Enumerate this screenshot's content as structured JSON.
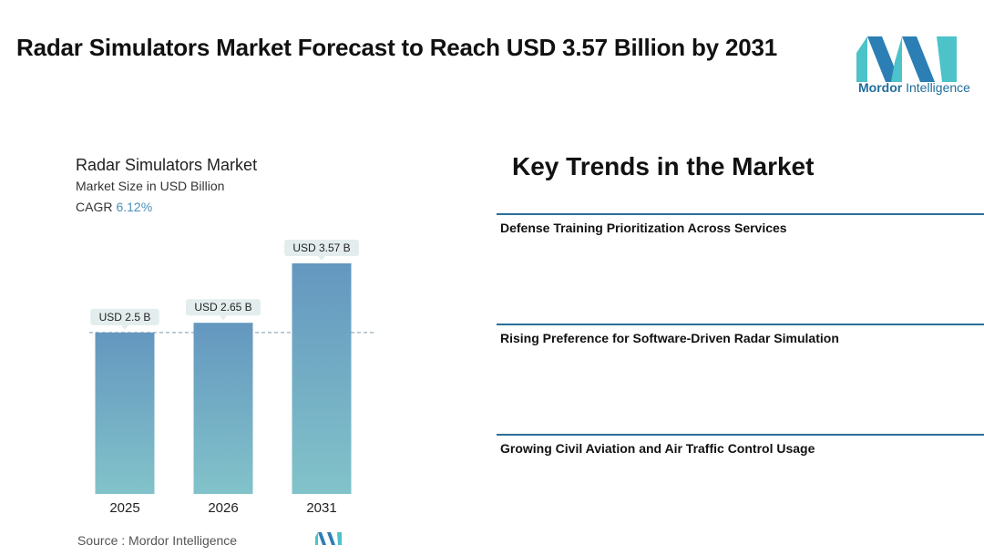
{
  "header": {
    "title": "Radar Simulators Market Forecast to Reach USD 3.57 Billion by 2031"
  },
  "logo": {
    "brand_bold": "Mordor",
    "brand_light": " Intelligence"
  },
  "chart_info": {
    "title": "Radar Simulators Market",
    "subtitle": "Market Size in USD Billion",
    "cagr_label": "CAGR",
    "cagr_value": "6.12%"
  },
  "chart_data": {
    "type": "bar",
    "title": "Radar Simulators Market",
    "ylabel": "Market Size in USD Billion",
    "categories": [
      "2025",
      "2026",
      "2031"
    ],
    "values": [
      2.5,
      2.65,
      3.57
    ],
    "data_labels": [
      "USD 2.5 B",
      "USD 2.65 B",
      "USD 3.57 B"
    ],
    "reference_line_value": 2.5,
    "ylim": [
      0,
      3.57
    ],
    "grid": false,
    "colors": {
      "bar_top": "#6497bf",
      "bar_bottom": "#82c3ca",
      "label_bg": "#e4eded",
      "ref_line": "#7a9bb0"
    }
  },
  "source": {
    "text": "Source :  Mordor Intelligence"
  },
  "trends": {
    "heading": "Key Trends in the Market",
    "items": [
      {
        "label": "Defense Training Prioritization Across Services"
      },
      {
        "label": "Rising Preference for Software-Driven Radar Simulation"
      },
      {
        "label": "Growing Civil Aviation and Air Traffic Control Usage"
      }
    ]
  },
  "colors": {
    "accent": "#2a6f98",
    "logo_dark": "#1f6e9c",
    "logo_light": "#4cc3c9"
  }
}
